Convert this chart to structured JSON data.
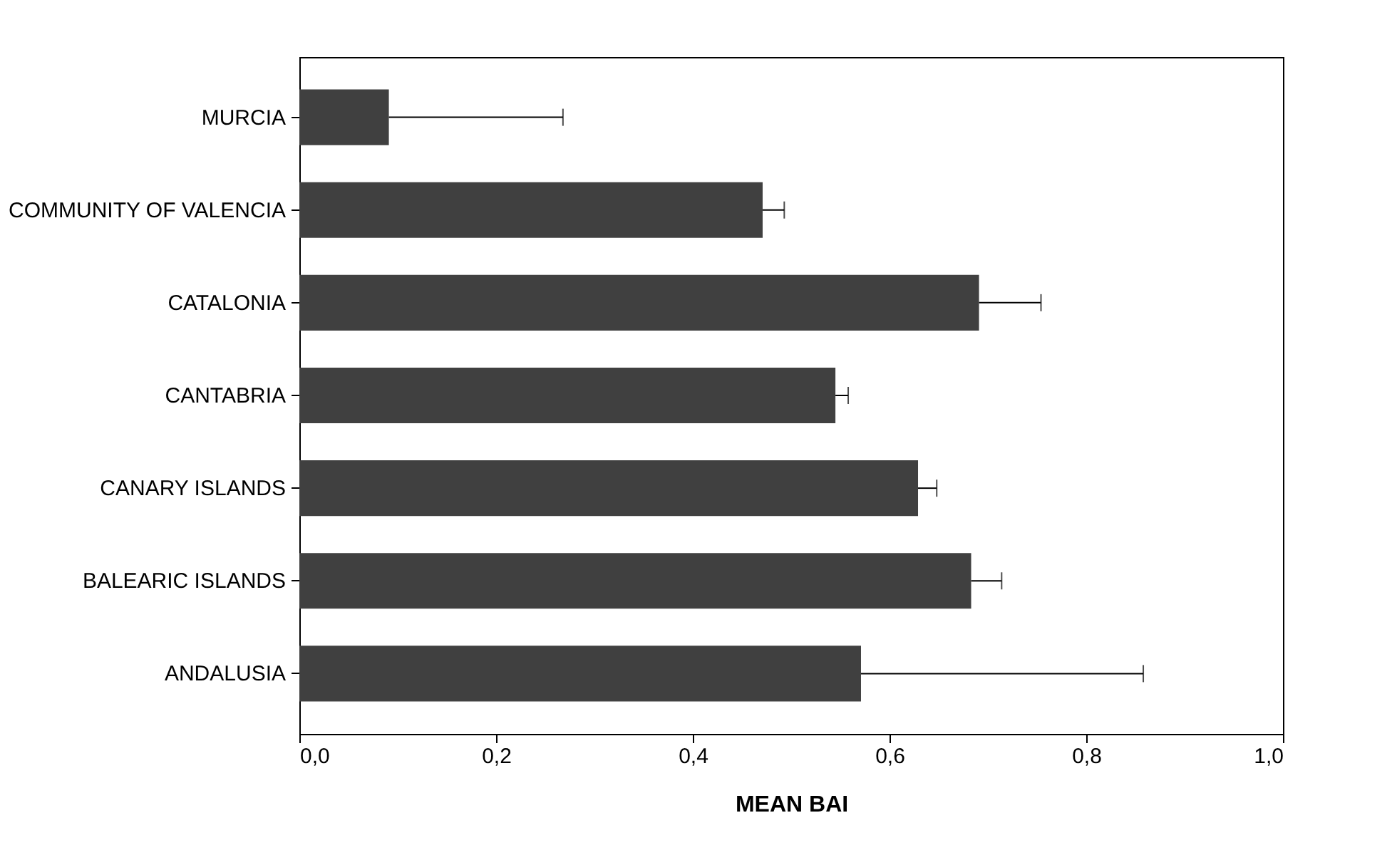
{
  "chart_data": {
    "type": "bar",
    "orientation": "horizontal",
    "xlabel": "MEAN BAI",
    "categories": [
      "MURCIA",
      "COMMUNITY OF VALENCIA",
      "CATALONIA",
      "CANTABRIA",
      "CANARY ISLANDS",
      "BALEARIC ISLANDS",
      "ANDALUSIA"
    ],
    "values": [
      0.091,
      0.471,
      0.691,
      0.545,
      0.629,
      0.683,
      0.571
    ],
    "errors": [
      [
        0.091,
        0.268
      ],
      [
        0.471,
        0.493
      ],
      [
        0.691,
        0.754
      ],
      [
        0.545,
        0.558
      ],
      [
        0.629,
        0.648
      ],
      [
        0.683,
        0.714
      ],
      [
        0.571,
        0.858
      ]
    ],
    "color": "#404040",
    "xlim": [
      0,
      1
    ],
    "xticks": [
      {
        "value": 0,
        "label": "0,0"
      },
      {
        "value": 0.2,
        "label": "0,2"
      },
      {
        "value": 0.4,
        "label": "0,4"
      },
      {
        "value": 0.6,
        "label": "0,6"
      },
      {
        "value": 0.8,
        "label": "0,8"
      },
      {
        "value": 1,
        "label": "1,0"
      }
    ],
    "grid": false
  }
}
